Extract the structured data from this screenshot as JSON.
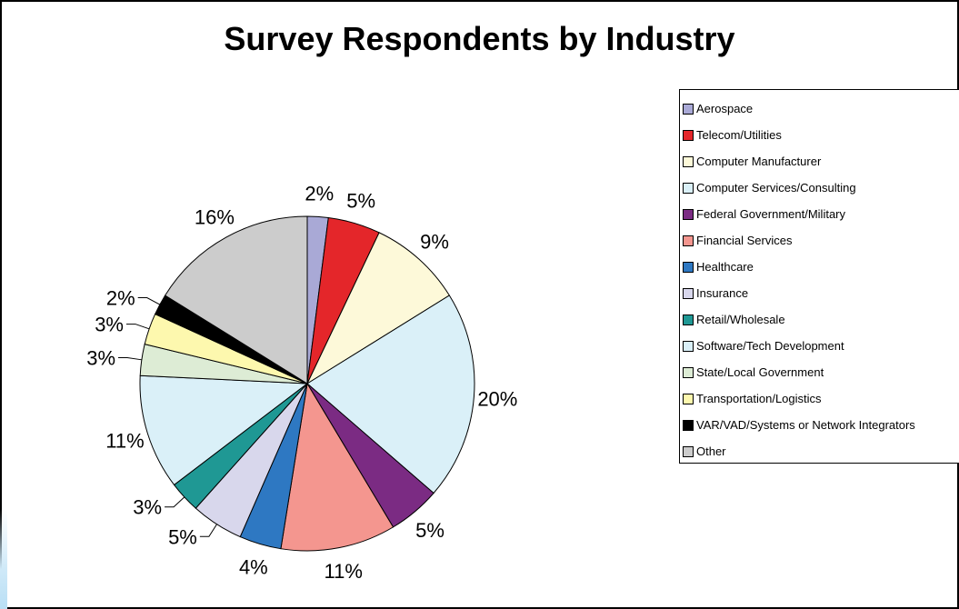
{
  "chart_data": {
    "type": "pie",
    "title": "Survey Respondents by Industry",
    "legend_position": "right",
    "slices": [
      {
        "label": "Aerospace",
        "value": 2,
        "display": "2%",
        "color": "#a9a9d6"
      },
      {
        "label": "Telecom/Utilities",
        "value": 5,
        "display": "5%",
        "color": "#e4262a"
      },
      {
        "label": "Computer Manufacturer",
        "value": 9,
        "display": "9%",
        "color": "#fdf9d9"
      },
      {
        "label": "Computer Services/Consulting",
        "value": 20,
        "display": "20%",
        "color": "#daf0f8"
      },
      {
        "label": "Federal Government/Military",
        "value": 5,
        "display": "5%",
        "color": "#7b2b83"
      },
      {
        "label": "Financial Services",
        "value": 11,
        "display": "11%",
        "color": "#f4968f"
      },
      {
        "label": "Healthcare",
        "value": 4,
        "display": "4%",
        "color": "#2e78c2"
      },
      {
        "label": "Insurance",
        "value": 5,
        "display": "5%",
        "color": "#d8d7ec"
      },
      {
        "label": "Retail/Wholesale",
        "value": 3,
        "display": "3%",
        "color": "#1f9894"
      },
      {
        "label": "Software/Tech Development",
        "value": 11,
        "display": "11%",
        "color": "#daf0f8"
      },
      {
        "label": "State/Local Government",
        "value": 3,
        "display": "3%",
        "color": "#ddecd5"
      },
      {
        "label": "Transportation/Logistics",
        "value": 3,
        "display": "3%",
        "color": "#fdf8ae"
      },
      {
        "label": "VAR/VAD/Systems or Network Integrators",
        "value": 2,
        "display": "2%",
        "color": "#000000"
      },
      {
        "label": "Other",
        "value": 16,
        "display": "16%",
        "color": "#cccccc"
      }
    ]
  }
}
